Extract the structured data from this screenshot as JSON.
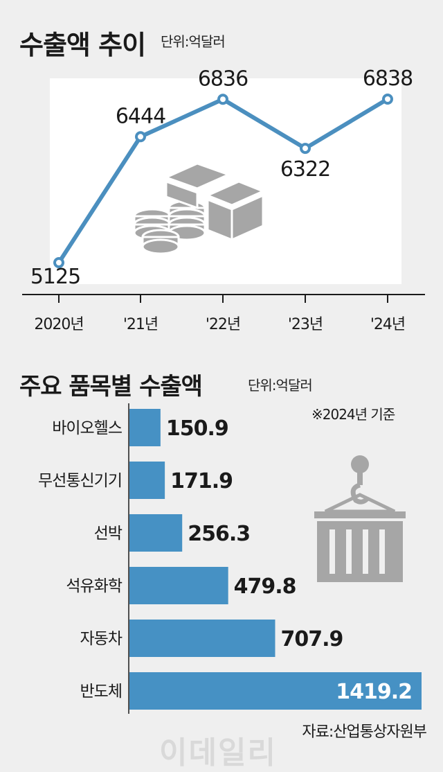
{
  "watermark": "이데일리",
  "source": "자료:산업통상자원부",
  "line_chart": {
    "title": "수출액 추이",
    "unit": "단위:억달러"
  },
  "bar_chart": {
    "title": "주요 품목별 수출액",
    "unit": "단위:억달러",
    "note": "※2024년 기준"
  },
  "icons": [
    "money-stack-icon",
    "cargo-container-icon"
  ],
  "colors": {
    "line": "#4b8fbf",
    "bar": "#4691c4",
    "icon": "#a6a6a6",
    "background": "#efefef",
    "plot_area": "#ffffff"
  },
  "chart_data": [
    {
      "type": "line",
      "title": "수출액 추이",
      "ylabel": "단위:억달러",
      "categories": [
        "2020년",
        "'21년",
        "'22년",
        "'23년",
        "'24년"
      ],
      "values": [
        5125,
        6444,
        6836,
        6322,
        6838
      ],
      "data_labels": [
        "5125",
        "6444",
        "6836",
        "6322",
        "6838"
      ],
      "ylim": [
        4900,
        7150
      ],
      "grid": false
    },
    {
      "type": "bar",
      "orientation": "horizontal",
      "title": "주요 품목별 수출액",
      "xlabel": "단위:억달러",
      "categories": [
        "바이오헬스",
        "무선통신기기",
        "선박",
        "석유화학",
        "자동차",
        "반도체"
      ],
      "values": [
        150.9,
        171.9,
        256.3,
        479.8,
        707.9,
        1419.2
      ],
      "data_labels": [
        "150.9",
        "171.9",
        "256.3",
        "479.8",
        "707.9",
        "1419.2"
      ],
      "xlim": [
        0,
        1419.2
      ],
      "grid": false
    }
  ]
}
